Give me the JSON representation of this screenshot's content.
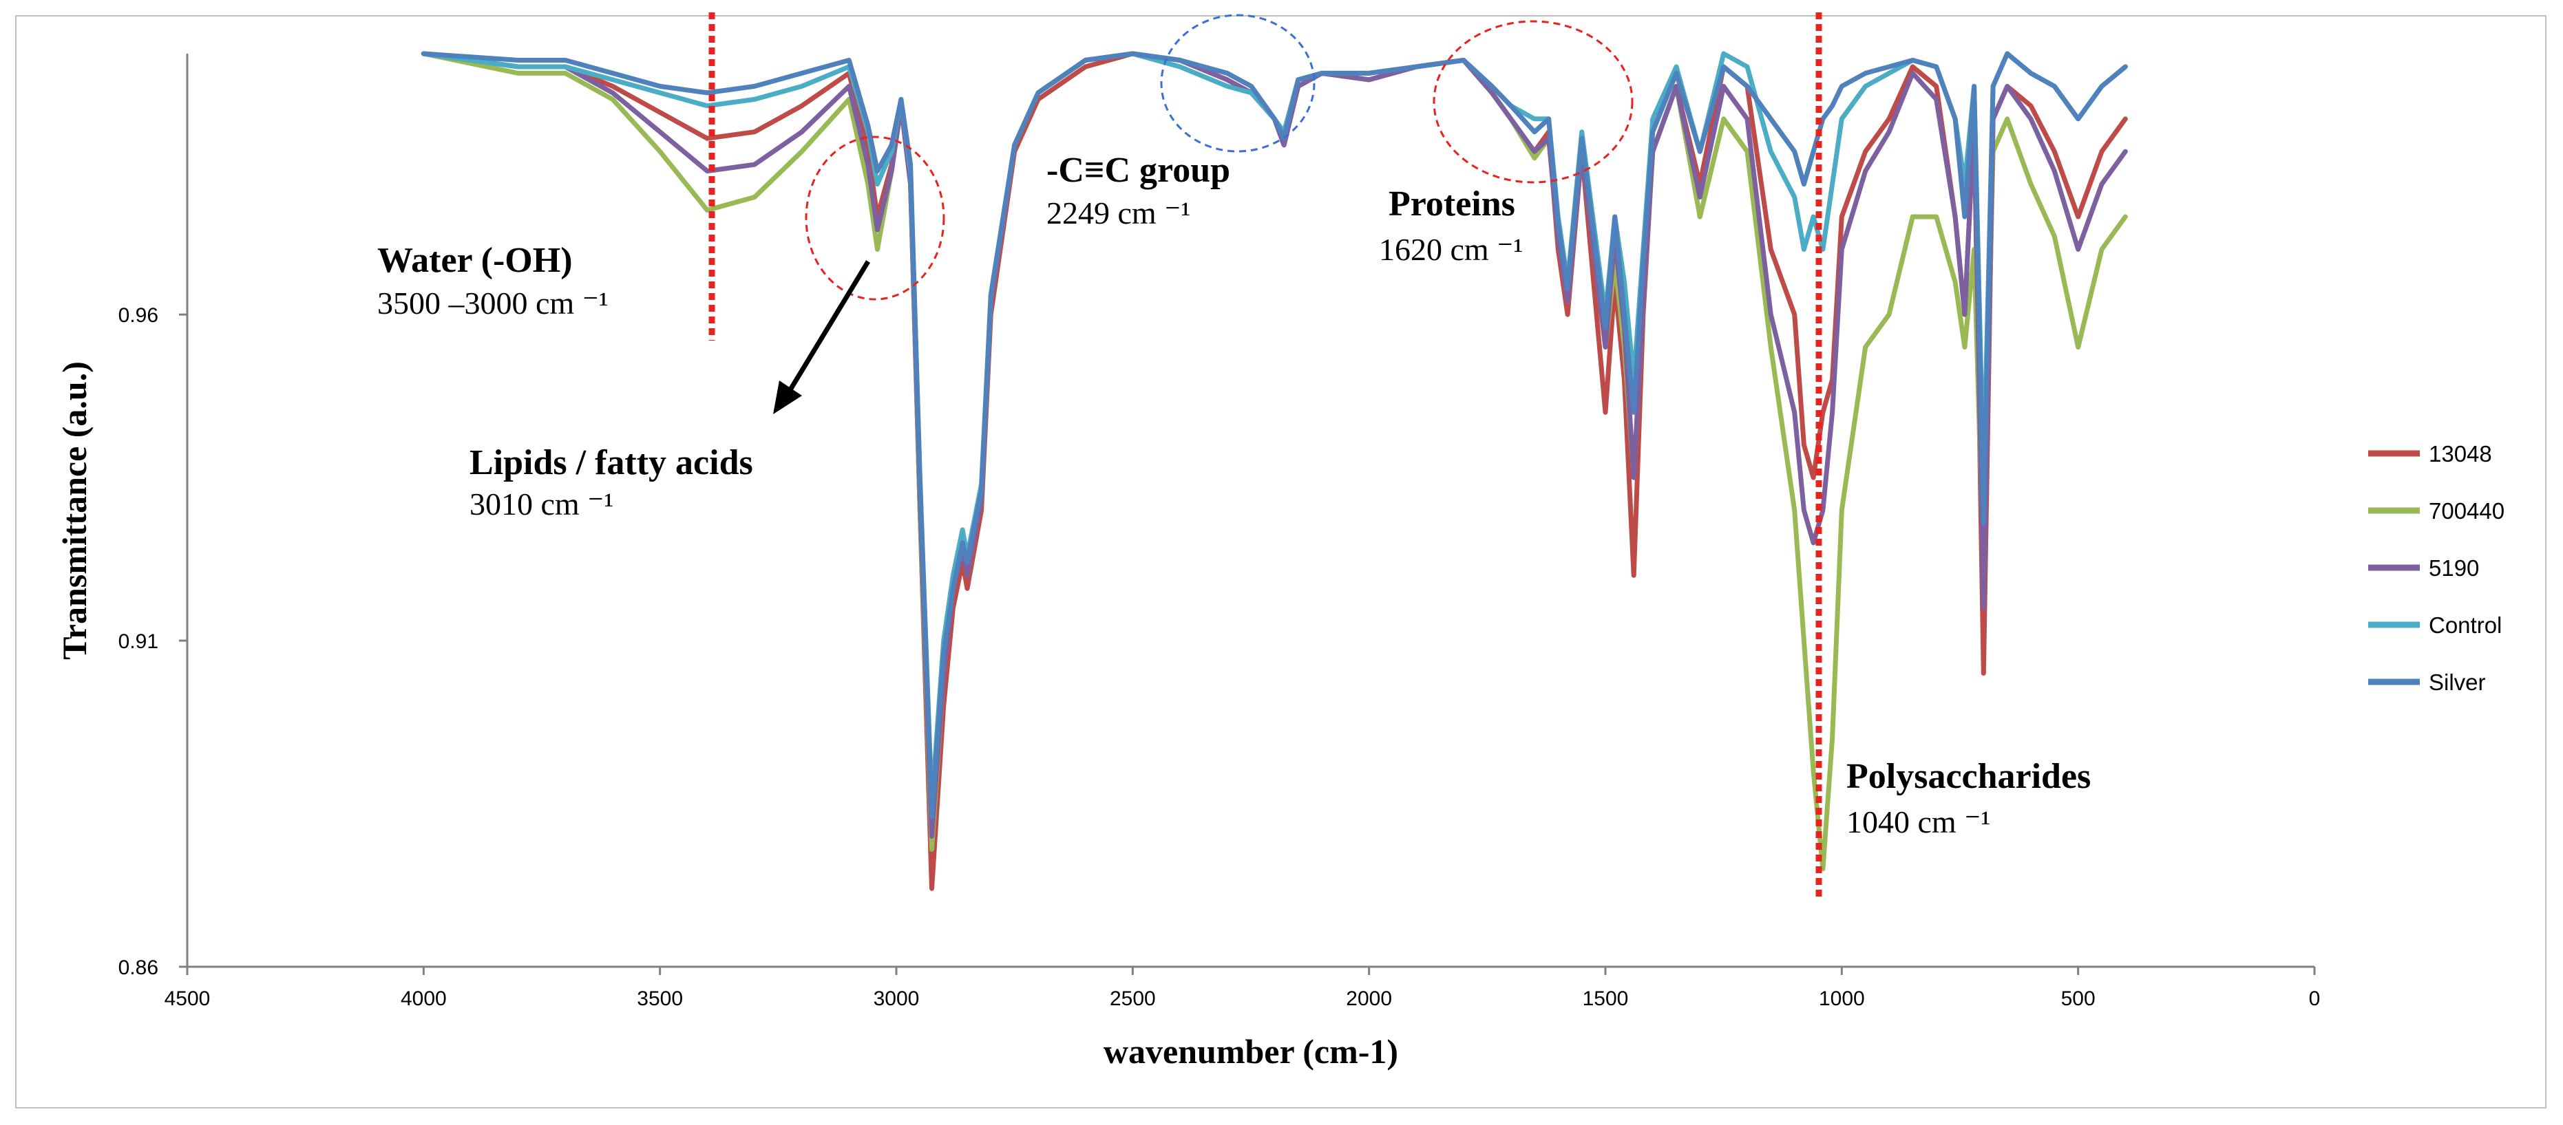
{
  "chart_data": {
    "type": "line",
    "title": "",
    "xlabel": "wavenumber (cm-1)",
    "ylabel": "Transmittance (a.u.)",
    "xlim": [
      4500,
      0
    ],
    "ylim": [
      0.86,
      1.0
    ],
    "x_ticks": [
      4500,
      4000,
      3500,
      3000,
      2500,
      2000,
      1500,
      1000,
      500,
      0
    ],
    "y_ticks": [
      0.86,
      0.91,
      0.96
    ],
    "y_tick_labels": [
      "0.86",
      "0.91",
      "0.96"
    ],
    "legend_position": "right",
    "series": [
      {
        "name": "13048",
        "color": "#be4b48",
        "x": [
          4000,
          3800,
          3700,
          3600,
          3500,
          3400,
          3300,
          3200,
          3100,
          3060,
          3040,
          3010,
          2990,
          2970,
          2950,
          2925,
          2900,
          2880,
          2860,
          2850,
          2820,
          2800,
          2750,
          2700,
          2600,
          2500,
          2400,
          2300,
          2249,
          2200,
          2180,
          2150,
          2100,
          2000,
          1900,
          1800,
          1740,
          1700,
          1650,
          1620,
          1600,
          1580,
          1550,
          1500,
          1480,
          1460,
          1440,
          1420,
          1400,
          1350,
          1300,
          1250,
          1200,
          1150,
          1100,
          1080,
          1060,
          1040,
          1020,
          1000,
          950,
          900,
          850,
          800,
          760,
          740,
          720,
          700,
          680,
          650,
          600,
          550,
          500,
          450,
          400
        ],
        "y": [
          1.0,
          0.998,
          0.998,
          0.995,
          0.991,
          0.987,
          0.988,
          0.992,
          0.997,
          0.985,
          0.975,
          0.983,
          0.992,
          0.98,
          0.93,
          0.872,
          0.9,
          0.915,
          0.922,
          0.918,
          0.93,
          0.96,
          0.985,
          0.993,
          0.998,
          1.0,
          0.999,
          0.996,
          0.994,
          0.99,
          0.986,
          0.995,
          0.997,
          0.996,
          0.998,
          0.999,
          0.994,
          0.99,
          0.985,
          0.988,
          0.97,
          0.96,
          0.985,
          0.945,
          0.965,
          0.95,
          0.92,
          0.96,
          0.985,
          0.995,
          0.98,
          0.998,
          0.995,
          0.97,
          0.96,
          0.94,
          0.935,
          0.945,
          0.95,
          0.975,
          0.985,
          0.99,
          0.998,
          0.995,
          0.975,
          0.96,
          0.99,
          0.905,
          0.99,
          0.995,
          0.992,
          0.985,
          0.975,
          0.985,
          0.99
        ]
      },
      {
        "name": "700440",
        "color": "#98b954",
        "x": [
          4000,
          3800,
          3700,
          3600,
          3500,
          3400,
          3300,
          3200,
          3100,
          3060,
          3040,
          3010,
          2990,
          2970,
          2950,
          2925,
          2900,
          2880,
          2860,
          2850,
          2820,
          2800,
          2750,
          2700,
          2600,
          2500,
          2400,
          2300,
          2249,
          2200,
          2180,
          2150,
          2100,
          2000,
          1900,
          1800,
          1740,
          1700,
          1650,
          1620,
          1600,
          1580,
          1550,
          1500,
          1480,
          1460,
          1440,
          1420,
          1400,
          1350,
          1300,
          1250,
          1200,
          1150,
          1100,
          1080,
          1060,
          1040,
          1020,
          1000,
          950,
          900,
          850,
          800,
          760,
          740,
          720,
          700,
          680,
          650,
          600,
          550,
          500,
          450,
          400
        ],
        "y": [
          1.0,
          0.997,
          0.997,
          0.993,
          0.985,
          0.976,
          0.978,
          0.985,
          0.993,
          0.98,
          0.97,
          0.982,
          0.992,
          0.98,
          0.93,
          0.878,
          0.905,
          0.918,
          0.925,
          0.92,
          0.932,
          0.962,
          0.986,
          0.994,
          0.999,
          1.0,
          0.999,
          0.997,
          0.995,
          0.99,
          0.986,
          0.995,
          0.997,
          0.996,
          0.998,
          0.999,
          0.994,
          0.99,
          0.984,
          0.987,
          0.972,
          0.962,
          0.985,
          0.955,
          0.968,
          0.955,
          0.935,
          0.962,
          0.985,
          0.995,
          0.975,
          0.99,
          0.985,
          0.955,
          0.93,
          0.91,
          0.89,
          0.875,
          0.895,
          0.93,
          0.955,
          0.96,
          0.975,
          0.975,
          0.965,
          0.955,
          0.97,
          0.92,
          0.985,
          0.99,
          0.98,
          0.972,
          0.955,
          0.97,
          0.975
        ]
      },
      {
        "name": "5190",
        "color": "#7d60a0",
        "x": [
          4000,
          3800,
          3700,
          3600,
          3500,
          3400,
          3300,
          3200,
          3100,
          3060,
          3040,
          3010,
          2990,
          2970,
          2950,
          2925,
          2900,
          2880,
          2860,
          2850,
          2820,
          2800,
          2750,
          2700,
          2600,
          2500,
          2400,
          2300,
          2249,
          2200,
          2180,
          2150,
          2100,
          2000,
          1900,
          1800,
          1740,
          1700,
          1650,
          1620,
          1600,
          1580,
          1550,
          1500,
          1480,
          1460,
          1440,
          1420,
          1400,
          1350,
          1300,
          1250,
          1200,
          1150,
          1100,
          1080,
          1060,
          1040,
          1020,
          1000,
          950,
          900,
          850,
          800,
          760,
          740,
          720,
          700,
          680,
          650,
          600,
          550,
          500,
          450,
          400
        ],
        "y": [
          1.0,
          0.998,
          0.998,
          0.994,
          0.988,
          0.982,
          0.983,
          0.988,
          0.995,
          0.983,
          0.973,
          0.982,
          0.992,
          0.98,
          0.932,
          0.88,
          0.905,
          0.918,
          0.924,
          0.92,
          0.932,
          0.962,
          0.986,
          0.994,
          0.999,
          1.0,
          0.999,
          0.996,
          0.994,
          0.99,
          0.986,
          0.995,
          0.997,
          0.996,
          0.998,
          0.999,
          0.994,
          0.99,
          0.985,
          0.987,
          0.972,
          0.962,
          0.985,
          0.955,
          0.972,
          0.958,
          0.935,
          0.962,
          0.985,
          0.995,
          0.978,
          0.995,
          0.99,
          0.96,
          0.945,
          0.93,
          0.925,
          0.93,
          0.945,
          0.97,
          0.982,
          0.988,
          0.997,
          0.993,
          0.975,
          0.96,
          0.99,
          0.915,
          0.99,
          0.995,
          0.99,
          0.982,
          0.97,
          0.98,
          0.985
        ]
      },
      {
        "name": "Control",
        "color": "#4bacc6",
        "x": [
          4000,
          3800,
          3700,
          3600,
          3500,
          3400,
          3300,
          3200,
          3100,
          3060,
          3040,
          3010,
          2990,
          2970,
          2950,
          2925,
          2900,
          2880,
          2860,
          2850,
          2820,
          2800,
          2750,
          2700,
          2600,
          2500,
          2400,
          2300,
          2249,
          2200,
          2180,
          2150,
          2100,
          2000,
          1900,
          1800,
          1740,
          1700,
          1650,
          1620,
          1600,
          1580,
          1550,
          1500,
          1480,
          1460,
          1440,
          1420,
          1400,
          1350,
          1300,
          1250,
          1200,
          1150,
          1100,
          1080,
          1060,
          1040,
          1020,
          1000,
          950,
          900,
          850,
          800,
          760,
          740,
          720,
          700,
          680,
          650,
          600,
          550,
          500,
          450,
          400
        ],
        "y": [
          1.0,
          0.998,
          0.998,
          0.996,
          0.994,
          0.992,
          0.993,
          0.995,
          0.998,
          0.988,
          0.98,
          0.985,
          0.993,
          0.982,
          0.935,
          0.885,
          0.91,
          0.92,
          0.927,
          0.923,
          0.934,
          0.963,
          0.986,
          0.994,
          0.999,
          1.0,
          0.998,
          0.995,
          0.994,
          0.99,
          0.988,
          0.996,
          0.997,
          0.997,
          0.998,
          0.999,
          0.995,
          0.992,
          0.99,
          0.99,
          0.975,
          0.965,
          0.988,
          0.96,
          0.975,
          0.965,
          0.95,
          0.97,
          0.99,
          0.998,
          0.985,
          1.0,
          0.998,
          0.985,
          0.978,
          0.97,
          0.975,
          0.97,
          0.98,
          0.99,
          0.995,
          0.997,
          0.999,
          0.998,
          0.99,
          0.98,
          0.995,
          0.935,
          0.995,
          1.0,
          0.997,
          0.995,
          0.99,
          0.995,
          0.998
        ]
      },
      {
        "name": "Silver",
        "color": "#4f81bd",
        "x": [
          4000,
          3800,
          3700,
          3600,
          3500,
          3400,
          3300,
          3200,
          3100,
          3060,
          3040,
          3010,
          2990,
          2970,
          2950,
          2925,
          2900,
          2880,
          2860,
          2850,
          2820,
          2800,
          2750,
          2700,
          2600,
          2500,
          2400,
          2300,
          2249,
          2200,
          2180,
          2150,
          2100,
          2000,
          1900,
          1800,
          1740,
          1700,
          1650,
          1620,
          1600,
          1580,
          1550,
          1500,
          1480,
          1460,
          1440,
          1420,
          1400,
          1350,
          1300,
          1250,
          1200,
          1150,
          1100,
          1080,
          1060,
          1040,
          1020,
          1000,
          950,
          900,
          850,
          800,
          760,
          740,
          720,
          700,
          680,
          650,
          600,
          550,
          500,
          450,
          400
        ],
        "y": [
          1.0,
          0.999,
          0.999,
          0.997,
          0.995,
          0.994,
          0.995,
          0.997,
          0.999,
          0.989,
          0.982,
          0.986,
          0.993,
          0.983,
          0.935,
          0.883,
          0.908,
          0.918,
          0.925,
          0.922,
          0.933,
          0.963,
          0.986,
          0.994,
          0.999,
          1.0,
          0.999,
          0.997,
          0.995,
          0.99,
          0.987,
          0.996,
          0.997,
          0.997,
          0.998,
          0.999,
          0.995,
          0.992,
          0.988,
          0.99,
          0.974,
          0.964,
          0.987,
          0.958,
          0.975,
          0.96,
          0.945,
          0.968,
          0.988,
          0.997,
          0.985,
          0.998,
          0.995,
          0.99,
          0.985,
          0.98,
          0.985,
          0.99,
          0.992,
          0.995,
          0.997,
          0.998,
          0.999,
          0.998,
          0.99,
          0.975,
          0.995,
          0.928,
          0.995,
          1.0,
          0.997,
          0.995,
          0.99,
          0.995,
          0.998
        ]
      }
    ],
    "annotations": [
      {
        "title": "Water (-OH)",
        "subtitle": "3500 –3000 cm ⁻¹",
        "marker": "dotted-line",
        "at": 3390
      },
      {
        "title": "Lipids / fatty acids",
        "subtitle": "3010 cm ⁻¹",
        "marker": "circle",
        "at": 3030
      },
      {
        "title": "-C≡C group",
        "subtitle": "2249 cm ⁻¹",
        "marker": "circle",
        "at": 2300
      },
      {
        "title": "Proteins",
        "subtitle": "1620 cm ⁻¹",
        "marker": "circle",
        "at": 1650
      },
      {
        "title": "Polysaccharides",
        "subtitle": "1040 cm ⁻¹",
        "marker": "dotted-line",
        "at": 1040
      }
    ]
  },
  "colors": {
    "marker_red": "#e8221c",
    "marker_blue": "#3a6fd8",
    "axis": "#808080",
    "frame": "#bfbfbf"
  }
}
